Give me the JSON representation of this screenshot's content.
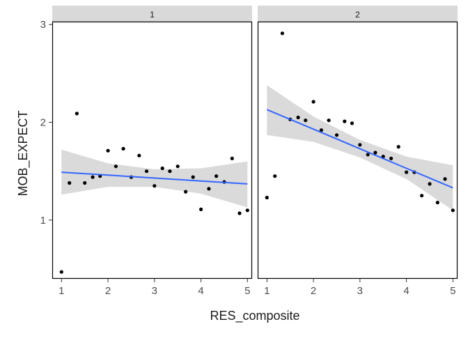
{
  "chart_data": {
    "type": "scatter",
    "xlabel": "RES_composite",
    "ylabel": "MOB_EXPECT",
    "xlim": [
      0.8,
      5.1
    ],
    "ylim": [
      0.4,
      3.03
    ],
    "x_ticks": [
      1,
      2,
      3,
      4,
      5
    ],
    "y_ticks": [
      1,
      2,
      3
    ],
    "grid": false,
    "colors": {
      "strip_fill": "#d9d9d9",
      "panel_border": "#000000",
      "point": "#000000",
      "smooth_line": "#3366ff",
      "ribbon": "#d3d3d3"
    },
    "panels": [
      {
        "strip_label": "1",
        "points": [
          {
            "x": 1.0,
            "y": 0.47
          },
          {
            "x": 1.17,
            "y": 1.38
          },
          {
            "x": 1.33,
            "y": 2.09
          },
          {
            "x": 1.5,
            "y": 1.38
          },
          {
            "x": 1.67,
            "y": 1.44
          },
          {
            "x": 1.83,
            "y": 1.45
          },
          {
            "x": 2.0,
            "y": 1.71
          },
          {
            "x": 2.17,
            "y": 1.55
          },
          {
            "x": 2.33,
            "y": 1.73
          },
          {
            "x": 2.5,
            "y": 1.44
          },
          {
            "x": 2.67,
            "y": 1.66
          },
          {
            "x": 2.83,
            "y": 1.5
          },
          {
            "x": 3.0,
            "y": 1.35
          },
          {
            "x": 3.17,
            "y": 1.53
          },
          {
            "x": 3.33,
            "y": 1.5
          },
          {
            "x": 3.5,
            "y": 1.55
          },
          {
            "x": 3.67,
            "y": 1.29
          },
          {
            "x": 3.83,
            "y": 1.44
          },
          {
            "x": 4.0,
            "y": 1.11
          },
          {
            "x": 4.17,
            "y": 1.32
          },
          {
            "x": 4.33,
            "y": 1.45
          },
          {
            "x": 4.5,
            "y": 1.39
          },
          {
            "x": 4.67,
            "y": 1.63
          },
          {
            "x": 4.83,
            "y": 1.07
          },
          {
            "x": 5.0,
            "y": 1.1
          }
        ],
        "smooth": {
          "x": [
            1,
            2,
            3,
            4,
            5
          ],
          "fit": [
            1.49,
            1.46,
            1.43,
            1.4,
            1.37
          ],
          "lower": [
            1.26,
            1.34,
            1.34,
            1.27,
            1.13
          ],
          "upper": [
            1.72,
            1.58,
            1.52,
            1.53,
            1.6
          ]
        }
      },
      {
        "strip_label": "2",
        "points": [
          {
            "x": 1.0,
            "y": 1.23
          },
          {
            "x": 1.17,
            "y": 1.45
          },
          {
            "x": 1.33,
            "y": 2.91
          },
          {
            "x": 1.5,
            "y": 2.03
          },
          {
            "x": 1.67,
            "y": 2.05
          },
          {
            "x": 1.83,
            "y": 2.02
          },
          {
            "x": 2.0,
            "y": 2.21
          },
          {
            "x": 2.17,
            "y": 1.92
          },
          {
            "x": 2.33,
            "y": 2.02
          },
          {
            "x": 2.5,
            "y": 1.87
          },
          {
            "x": 2.67,
            "y": 2.01
          },
          {
            "x": 2.83,
            "y": 1.99
          },
          {
            "x": 3.0,
            "y": 1.77
          },
          {
            "x": 3.17,
            "y": 1.67
          },
          {
            "x": 3.33,
            "y": 1.69
          },
          {
            "x": 3.5,
            "y": 1.65
          },
          {
            "x": 3.67,
            "y": 1.63
          },
          {
            "x": 3.83,
            "y": 1.75
          },
          {
            "x": 4.0,
            "y": 1.49
          },
          {
            "x": 4.17,
            "y": 1.49
          },
          {
            "x": 4.33,
            "y": 1.25
          },
          {
            "x": 4.5,
            "y": 1.37
          },
          {
            "x": 4.67,
            "y": 1.18
          },
          {
            "x": 4.83,
            "y": 1.42
          },
          {
            "x": 5.0,
            "y": 1.1
          }
        ],
        "smooth": {
          "x": [
            1,
            2,
            3,
            4,
            5
          ],
          "fit": [
            2.13,
            1.93,
            1.73,
            1.53,
            1.33
          ],
          "lower": [
            1.87,
            1.8,
            1.64,
            1.42,
            1.1
          ],
          "upper": [
            2.38,
            2.06,
            1.82,
            1.65,
            1.56
          ]
        }
      }
    ]
  }
}
